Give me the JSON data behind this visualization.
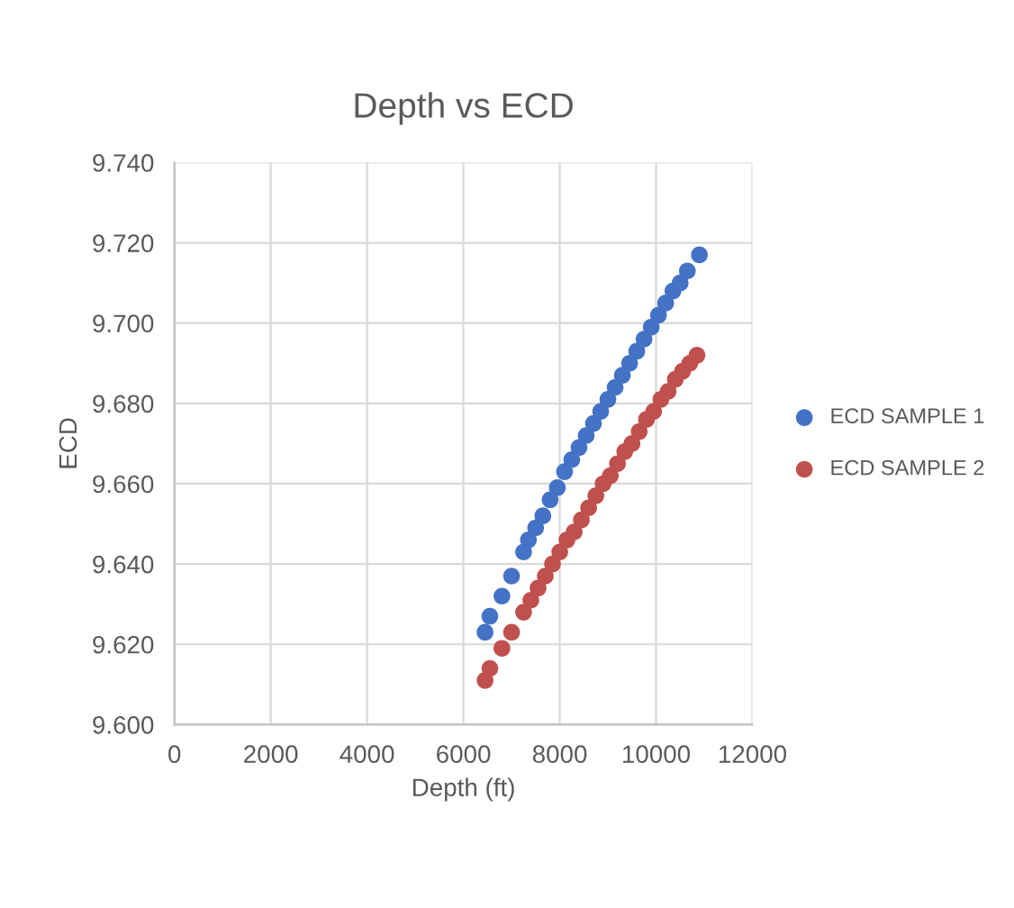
{
  "chart_data": {
    "type": "scatter",
    "title": "Depth vs ECD",
    "xlabel": "Depth (ft)",
    "ylabel": "ECD",
    "xlim": [
      0,
      12000
    ],
    "xticks": [
      0,
      2000,
      4000,
      6000,
      8000,
      10000,
      12000
    ],
    "ylim": [
      9.6,
      9.74
    ],
    "yticks": [
      {
        "value": 9.6,
        "label": "9.600"
      },
      {
        "value": 9.62,
        "label": "9.620"
      },
      {
        "value": 9.64,
        "label": "9.640"
      },
      {
        "value": 9.66,
        "label": "9.660"
      },
      {
        "value": 9.68,
        "label": "9.680"
      },
      {
        "value": 9.7,
        "label": "9.700"
      },
      {
        "value": 9.72,
        "label": "9.720"
      },
      {
        "value": 9.74,
        "label": "9.740"
      }
    ],
    "grid": true,
    "legend": "right",
    "marker": "circle",
    "series": [
      {
        "name": "ECD SAMPLE 1",
        "color": "#4472c4",
        "x": [
          6450,
          6550,
          6800,
          7000,
          7250,
          7350,
          7500,
          7650,
          7800,
          7950,
          8100,
          8250,
          8400,
          8550,
          8700,
          8850,
          9000,
          9150,
          9300,
          9450,
          9600,
          9750,
          9900,
          10050,
          10200,
          10350,
          10500,
          10650,
          10900
        ],
        "values": [
          9.623,
          9.627,
          9.632,
          9.637,
          9.643,
          9.646,
          9.649,
          9.652,
          9.656,
          9.659,
          9.663,
          9.666,
          9.669,
          9.672,
          9.675,
          9.678,
          9.681,
          9.684,
          9.687,
          9.69,
          9.693,
          9.696,
          9.699,
          9.702,
          9.705,
          9.708,
          9.71,
          9.713,
          9.717
        ]
      },
      {
        "name": "ECD SAMPLE 2",
        "color": "#c0504d",
        "x": [
          6450,
          6550,
          6800,
          7000,
          7250,
          7400,
          7550,
          7700,
          7850,
          8000,
          8150,
          8300,
          8450,
          8600,
          8750,
          8900,
          9050,
          9200,
          9350,
          9500,
          9650,
          9800,
          9950,
          10100,
          10250,
          10400,
          10550,
          10700,
          10850
        ],
        "values": [
          9.611,
          9.614,
          9.619,
          9.623,
          9.628,
          9.631,
          9.634,
          9.637,
          9.64,
          9.643,
          9.646,
          9.648,
          9.651,
          9.654,
          9.657,
          9.66,
          9.662,
          9.665,
          9.668,
          9.67,
          9.673,
          9.676,
          9.678,
          9.681,
          9.683,
          9.686,
          9.688,
          9.69,
          9.692
        ]
      }
    ]
  }
}
